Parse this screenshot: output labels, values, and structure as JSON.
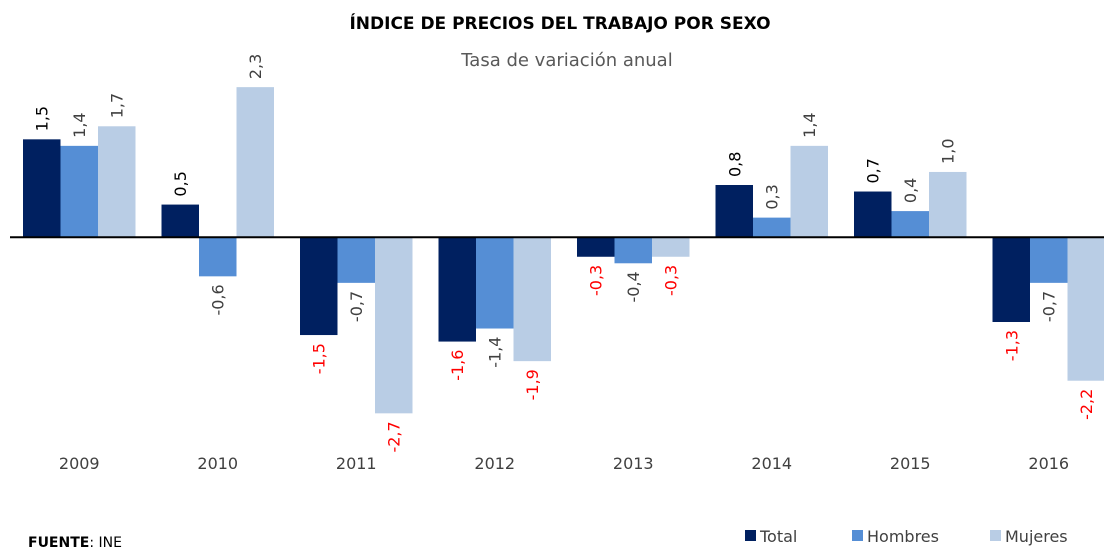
{
  "chart_data": {
    "type": "bar",
    "title": "ÍNDICE DE PRECIOS DEL TRABAJO POR SEXO",
    "subtitle": "Tasa de variación anual",
    "categories": [
      "2009",
      "2010",
      "2011",
      "2012",
      "2013",
      "2014",
      "2015",
      "2016"
    ],
    "series": [
      {
        "name": "Total",
        "color": "#002060",
        "label_color": "#000000",
        "negative_label_color": "#ff0000",
        "values": [
          1.5,
          0.5,
          -1.5,
          -1.6,
          -0.3,
          0.8,
          0.7,
          -1.3
        ],
        "value_labels": [
          "1,5",
          "0,5",
          "-1,5",
          "-1,6",
          "-0,3",
          "0,8",
          "0,7",
          "-1,3"
        ]
      },
      {
        "name": "Hombres",
        "color": "#558ed5",
        "label_color": "#404040",
        "negative_label_color": "#404040",
        "values": [
          1.4,
          -0.6,
          -0.7,
          -1.4,
          -0.4,
          0.3,
          0.4,
          -0.7
        ],
        "value_labels": [
          "1,4",
          "-0,6",
          "-0,7",
          "-1,4",
          "-0,4",
          "0,3",
          "0,4",
          "-0,7"
        ]
      },
      {
        "name": "Mujeres",
        "color": "#b9cde5",
        "label_color": "#404040",
        "negative_label_color": "#ff0000",
        "values": [
          1.7,
          2.3,
          -2.7,
          -1.9,
          -0.3,
          1.4,
          1.0,
          -2.2
        ],
        "value_labels": [
          "1,7",
          "2,3",
          "-2,7",
          "-1,9",
          "-0,3",
          "1,4",
          "1,0",
          "-2,2"
        ]
      }
    ],
    "ylim": [
      -3.4,
      2.9
    ],
    "grid": false,
    "legend": "bottom-right",
    "source": {
      "label": "FUENTE",
      "text": ": INE"
    }
  }
}
